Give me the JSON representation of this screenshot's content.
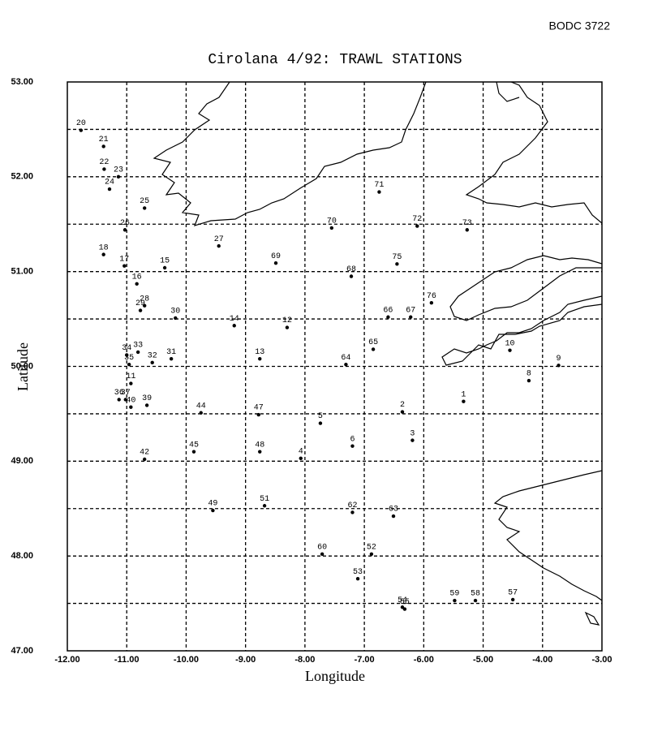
{
  "chart_data": {
    "type": "scatter",
    "source": "BODC 3722",
    "title": "Cirolana 4/92: TRAWL STATIONS",
    "x_label": "Longitude",
    "y_label": "Latitude",
    "xlim": [
      -12,
      -3
    ],
    "ylim": [
      47,
      53
    ],
    "xticks": [
      {
        "value": -12,
        "label": "-12.00"
      },
      {
        "value": -11,
        "label": "-11.00"
      },
      {
        "value": -10,
        "label": "-10.00"
      },
      {
        "value": -9,
        "label": "-9.00"
      },
      {
        "value": -8,
        "label": "-8.00"
      },
      {
        "value": -7,
        "label": "-7.00"
      },
      {
        "value": -6,
        "label": "-6.00"
      },
      {
        "value": -5,
        "label": "-5.00"
      },
      {
        "value": -4,
        "label": "-4.00"
      },
      {
        "value": -3,
        "label": "-3.00"
      }
    ],
    "yticks": [
      {
        "value": 47,
        "label": "47.00"
      },
      {
        "value": 48,
        "label": "48.00"
      },
      {
        "value": 49,
        "label": "49.00"
      },
      {
        "value": 50,
        "label": "50.00"
      },
      {
        "value": 51,
        "label": "51.00"
      },
      {
        "value": 52,
        "label": "52.00"
      },
      {
        "value": 53,
        "label": "53.00"
      }
    ],
    "y_minor_grid": [
      47.5,
      48.5,
      49.5,
      50.5,
      51.5,
      52.5
    ],
    "grid": true,
    "color": "#000000",
    "series": [
      {
        "labels": [
          "20",
          "21",
          "22",
          "23",
          "24",
          "25",
          "26",
          "27",
          "18",
          "17",
          "15",
          "16",
          "29",
          "28",
          "30",
          "14",
          "12",
          "69",
          "70",
          "71",
          "72",
          "73",
          "68",
          "75",
          "76",
          "66",
          "67",
          "65",
          "64",
          "13",
          "34",
          "33",
          "32",
          "31",
          "35",
          "11",
          "36",
          "37",
          "40",
          "39",
          "44",
          "47",
          "5",
          "2",
          "3",
          "1",
          "6",
          "4",
          "48",
          "45",
          "42",
          "8",
          "9",
          "10",
          "49",
          "51",
          "62",
          "63",
          "60",
          "52",
          "53",
          "54",
          "55",
          "59",
          "58",
          "57"
        ],
        "x": [
          -11.77,
          -11.39,
          -11.38,
          -11.14,
          -11.29,
          -10.7,
          -11.03,
          -9.45,
          -11.39,
          -11.04,
          -10.36,
          -10.83,
          -10.77,
          -10.7,
          -10.18,
          -9.19,
          -8.3,
          -8.49,
          -7.55,
          -6.75,
          -6.11,
          -5.27,
          -7.22,
          -6.45,
          -5.87,
          -6.6,
          -6.22,
          -6.85,
          -7.31,
          -8.76,
          -11.0,
          -10.81,
          -10.57,
          -10.25,
          -10.96,
          -10.93,
          -11.13,
          -11.02,
          -10.93,
          -10.66,
          -9.75,
          -8.78,
          -7.74,
          -6.36,
          -6.19,
          -5.33,
          -7.2,
          -8.07,
          -8.76,
          -9.87,
          -10.7,
          -4.23,
          -3.73,
          -4.55,
          -9.55,
          -8.68,
          -7.2,
          -6.51,
          -7.71,
          -6.88,
          -7.11,
          -6.36,
          -6.32,
          -5.48,
          -5.13,
          -4.5
        ],
        "values": [
          52.49,
          52.32,
          52.08,
          52.0,
          51.87,
          51.67,
          51.44,
          51.27,
          51.18,
          51.06,
          51.04,
          50.87,
          50.59,
          50.64,
          50.51,
          50.43,
          50.41,
          51.09,
          51.46,
          51.84,
          51.48,
          51.44,
          50.95,
          51.08,
          50.67,
          50.52,
          50.52,
          50.18,
          50.02,
          50.08,
          50.12,
          50.15,
          50.04,
          50.08,
          50.02,
          49.82,
          49.65,
          49.65,
          49.57,
          49.59,
          49.51,
          49.49,
          49.4,
          49.52,
          49.22,
          49.63,
          49.16,
          49.03,
          49.1,
          49.1,
          49.02,
          49.85,
          50.01,
          50.17,
          48.48,
          48.53,
          48.46,
          48.42,
          48.02,
          48.02,
          47.76,
          47.46,
          47.44,
          47.53,
          47.53,
          47.54
        ]
      }
    ]
  }
}
